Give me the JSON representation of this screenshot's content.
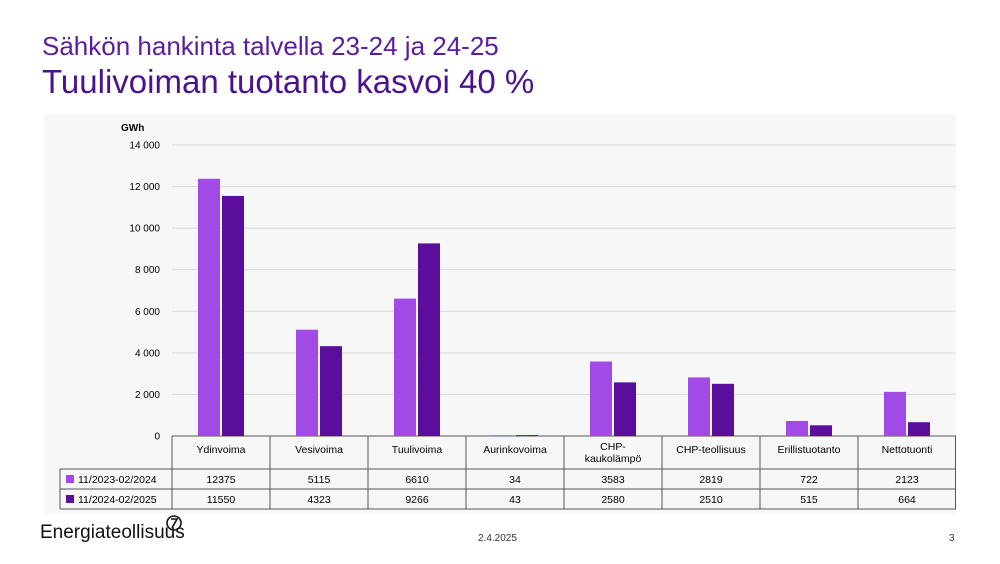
{
  "slide": {
    "subtitle": "Sähkön hankinta talvella 23-24 ja 24-25",
    "title": "Tuulivoiman tuotanto kasvoi 40 %",
    "logo_text": "Energiateollisuus",
    "date": "2.4.2025",
    "page_number": "3"
  },
  "colors": {
    "series1": "#a24ae6",
    "series2": "#5b0e9c",
    "title": "#4b128f"
  },
  "chart_data": {
    "type": "bar",
    "unit_label": "GWh",
    "categories": [
      [
        "Ydinvoima"
      ],
      [
        "Vesivoima"
      ],
      [
        "Tuulivoima"
      ],
      [
        "Aurinkovoima"
      ],
      [
        "CHP-",
        "kaukolämpö"
      ],
      [
        "CHP-teollisuus"
      ],
      [
        "Erillistuotanto"
      ],
      [
        "Nettotuonti"
      ]
    ],
    "series": [
      {
        "name": "11/2023-02/2024",
        "values": [
          12375,
          5115,
          6610,
          34,
          3583,
          2819,
          722,
          2123
        ]
      },
      {
        "name": "11/2024-02/2025",
        "values": [
          11550,
          4323,
          9266,
          43,
          2580,
          2510,
          515,
          664
        ]
      }
    ],
    "ylim": [
      0,
      14000
    ],
    "yticks": [
      0,
      2000,
      4000,
      6000,
      8000,
      10000,
      12000,
      14000
    ],
    "ytick_labels": [
      "0",
      "2 000",
      "4 000",
      "6 000",
      "8 000",
      "10 000",
      "12 000",
      "14 000"
    ],
    "grid": true,
    "legend": "data-table"
  }
}
